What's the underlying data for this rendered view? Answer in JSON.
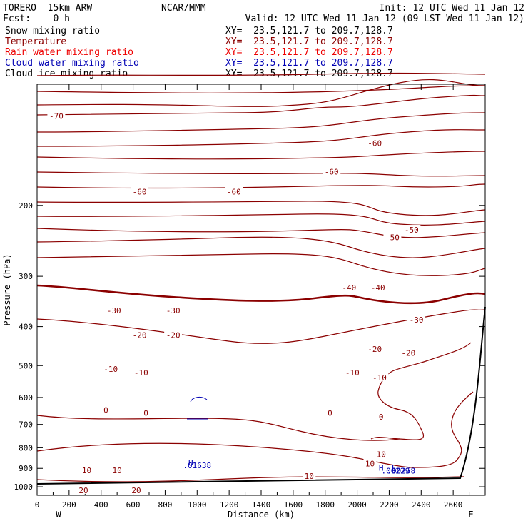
{
  "header": {
    "model": "TORERO  15km ARW",
    "org": "NCAR/MMM",
    "init": "Init: 12 UTC Wed 11 Jan 12",
    "fcst": "Fcst:    0 h",
    "valid": "Valid: 12 UTC Wed 11 Jan 12 (09 LST Wed 11 Jan 12)"
  },
  "legend": [
    {
      "label": "Snow mixing ratio",
      "xy": "XY=  23.5,121.7 to 209.7,128.7",
      "color": "#000000"
    },
    {
      "label": "Temperature",
      "xy": "XY=  23.5,121.7 to 209.7,128.7",
      "color": "#8b0000"
    },
    {
      "label": "Rain water mixing ratio",
      "xy": "XY=  23.5,121.7 to 209.7,128.7",
      "color": "#ee0000"
    },
    {
      "label": "Cloud water mixing ratio",
      "xy": "XY=  23.5,121.7 to 209.7,128.7",
      "color": "#0000b4"
    },
    {
      "label": "Cloud ice mixing ratio",
      "xy": "XY=  23.5,121.7 to 209.7,128.7",
      "color": "#000000"
    }
  ],
  "chart_data": {
    "type": "contour",
    "xlabel": "Distance (km)",
    "ylabel": "Pressure (hPa)",
    "x_ticks": [
      0,
      200,
      400,
      600,
      800,
      1000,
      1200,
      1400,
      1600,
      1800,
      2000,
      2200,
      2400,
      2600
    ],
    "y_ticks": [
      200,
      300,
      400,
      500,
      600,
      700,
      800,
      900,
      1000
    ],
    "xlim": [
      0,
      2800
    ],
    "ylim_pressure": [
      100,
      1050
    ],
    "x_endpoint_labels": {
      "left": "W",
      "right": "E"
    },
    "temperature_color": "#8b0000",
    "cloud_water_color": "#0000b4",
    "temperature_labels": [
      {
        "text": "-70",
        "x": 120,
        "p": 120
      },
      {
        "text": "-60",
        "x": 640,
        "p": 185
      },
      {
        "text": "-60",
        "x": 1230,
        "p": 185
      },
      {
        "text": "-60",
        "x": 1840,
        "p": 165
      },
      {
        "text": "-60",
        "x": 2110,
        "p": 140
      },
      {
        "text": "-50",
        "x": 2220,
        "p": 240
      },
      {
        "text": "-50",
        "x": 2340,
        "p": 230
      },
      {
        "text": "-40",
        "x": 1950,
        "p": 320
      },
      {
        "text": "-40",
        "x": 2130,
        "p": 320
      },
      {
        "text": "-30",
        "x": 480,
        "p": 365
      },
      {
        "text": "-30",
        "x": 850,
        "p": 365
      },
      {
        "text": "-30",
        "x": 2370,
        "p": 385
      },
      {
        "text": "-20",
        "x": 640,
        "p": 420
      },
      {
        "text": "-20",
        "x": 850,
        "p": 420
      },
      {
        "text": "-20",
        "x": 2110,
        "p": 455
      },
      {
        "text": "-20",
        "x": 2320,
        "p": 465
      },
      {
        "text": "-10",
        "x": 460,
        "p": 510
      },
      {
        "text": "-10",
        "x": 650,
        "p": 520
      },
      {
        "text": "-10",
        "x": 1970,
        "p": 520
      },
      {
        "text": "-10",
        "x": 2140,
        "p": 535
      },
      {
        "text": "0",
        "x": 430,
        "p": 645
      },
      {
        "text": "0",
        "x": 680,
        "p": 655
      },
      {
        "text": "0",
        "x": 1830,
        "p": 655
      },
      {
        "text": "0",
        "x": 2150,
        "p": 670
      },
      {
        "text": "10",
        "x": 310,
        "p": 910
      },
      {
        "text": "10",
        "x": 500,
        "p": 910
      },
      {
        "text": "10",
        "x": 1700,
        "p": 940
      },
      {
        "text": "10",
        "x": 2150,
        "p": 830
      },
      {
        "text": "10",
        "x": 2080,
        "p": 875
      },
      {
        "text": "20",
        "x": 290,
        "p": 1020
      },
      {
        "text": "20",
        "x": 620,
        "p": 1020
      }
    ],
    "cloud_water_labels": [
      {
        "text": "H",
        "x": 960,
        "p": 870
      },
      {
        "text": ".01638",
        "x": 1000,
        "p": 885
      },
      {
        "text": "H",
        "x": 2150,
        "p": 897
      },
      {
        "text": "L",
        "x": 2230,
        "p": 897
      },
      {
        "text": ".00229",
        "x": 2240,
        "p": 912
      },
      {
        "text": ".00258",
        "x": 2275,
        "p": 912
      }
    ]
  }
}
